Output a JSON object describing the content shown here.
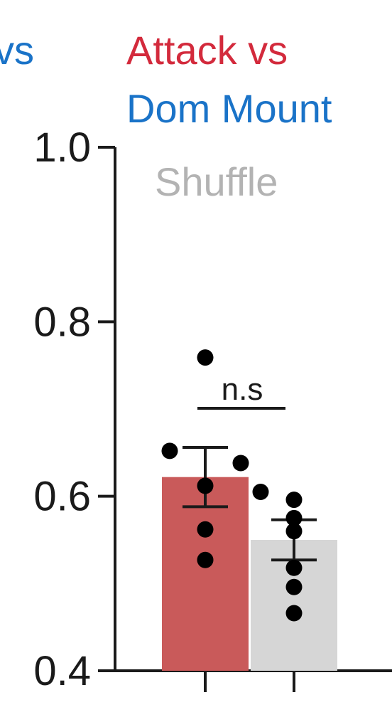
{
  "header": {
    "left_fragment": "vs",
    "title_line1": "Attack vs",
    "title_line2": "Dom Mount",
    "legend_shuffle": "Shuffle"
  },
  "colors": {
    "attack": "#d32a3c",
    "dom_mount": "#1a73c8",
    "shuffle_text": "#b3b3b3",
    "bar_attack": "#c95a5a",
    "bar_shuffle": "#d6d6d6",
    "axis": "#1a1a1a"
  },
  "chart_data": {
    "type": "bar",
    "categories": [
      "",
      ""
    ],
    "series": [
      {
        "values": [
          0.622,
          0.55
        ],
        "error": [
          [
            0.588,
            0.656
          ],
          [
            0.527,
            0.573
          ]
        ],
        "points": [
          [
            0.759,
            0.652,
            0.638,
            0.612,
            0.605,
            0.562,
            0.527
          ],
          [
            0.596,
            0.575,
            0.56,
            0.518,
            0.496,
            0.466
          ]
        ]
      }
    ],
    "ylim": [
      0.4,
      1.0
    ],
    "yticks": [
      "0.4",
      "0.6",
      "0.8",
      "1.0"
    ],
    "significance": "n.s",
    "xlabel": "",
    "ylabel": ""
  }
}
